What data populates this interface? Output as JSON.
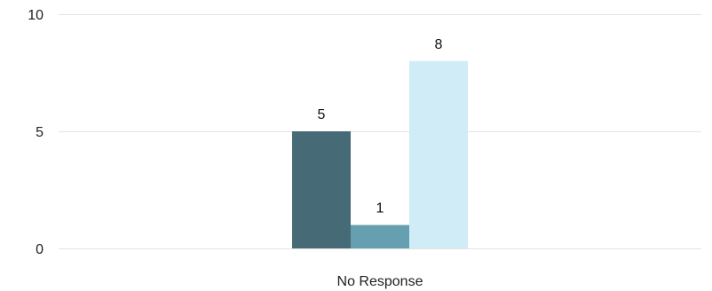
{
  "chart_data": {
    "type": "bar",
    "categories": [
      "No Response"
    ],
    "series": [
      {
        "values": [
          5
        ],
        "color": "#476b76"
      },
      {
        "values": [
          1
        ],
        "color": "#66a0b0"
      },
      {
        "values": [
          8
        ],
        "color": "#cfecf7"
      }
    ],
    "title": "",
    "xlabel": "",
    "ylabel": "",
    "ylim": [
      0,
      10
    ],
    "yticks": [
      0,
      5,
      10
    ],
    "grid": true,
    "data_labels": true,
    "legend": "none"
  }
}
